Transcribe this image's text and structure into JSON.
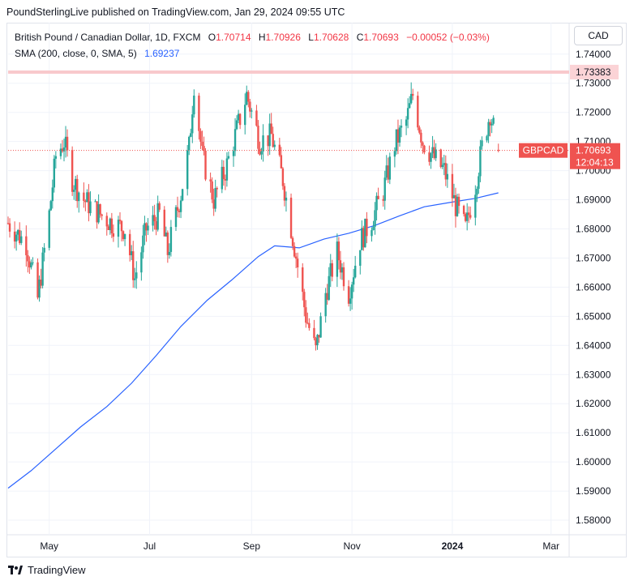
{
  "publisher_line": "PoundSterlingLive published on TradingView.com, Jan 29, 2024 09:55 UTC",
  "legend": {
    "instrument": "British Pound / Canadian Dollar, 1D, FXCM",
    "o_label": "O",
    "o_value": "1.70714",
    "h_label": "H",
    "h_value": "1.70926",
    "l_label": "L",
    "l_value": "1.70628",
    "c_label": "C",
    "c_value": "1.70693",
    "change": "−0.00052 (−0.03%)",
    "sma_label": "SMA (200, close, 0, SMA, 5)",
    "sma_value": "1.69237"
  },
  "currency_button": "CAD",
  "footer_brand": "TradingView",
  "colors": {
    "up": "#26a69a",
    "down": "#ef5350",
    "sma": "#2962ff",
    "hline": "#f8c9cc",
    "price_tag": "#ef5350",
    "grid": "#f0f3fa"
  },
  "chart_data": {
    "type": "candlestick",
    "symbol": "GBPCAD",
    "timeframe": "1D",
    "y_axis": {
      "min": 1.575,
      "max": 1.743,
      "ticks": [
        "1.74000",
        "1.73000",
        "1.72000",
        "1.71000",
        "1.70000",
        "1.69000",
        "1.68000",
        "1.67000",
        "1.66000",
        "1.65000",
        "1.64000",
        "1.63000",
        "1.62000",
        "1.61000",
        "1.60000",
        "1.59000",
        "1.58000"
      ]
    },
    "x_axis": {
      "ticks": [
        {
          "label": "May",
          "date": "2023-05-01",
          "bold": false
        },
        {
          "label": "Jul",
          "date": "2023-07-01",
          "bold": false
        },
        {
          "label": "Sep",
          "date": "2023-09-01",
          "bold": false
        },
        {
          "label": "Nov",
          "date": "2023-11-01",
          "bold": false
        },
        {
          "label": "2024",
          "date": "2024-01-01",
          "bold": true
        },
        {
          "label": "Mar",
          "date": "2024-03-01",
          "bold": false
        }
      ]
    },
    "horizontal_line": {
      "value": 1.73383,
      "label": "1.73383"
    },
    "last_price": {
      "value": 1.70693,
      "label": "1.70693",
      "symbol": "GBPCAD",
      "countdown": "12:04:13"
    },
    "sma": {
      "name": "SMA (200)",
      "points": [
        {
          "date": "2023-04-06",
          "value": 1.591
        },
        {
          "date": "2023-04-20",
          "value": 1.597
        },
        {
          "date": "2023-05-05",
          "value": 1.6045
        },
        {
          "date": "2023-05-20",
          "value": 1.612
        },
        {
          "date": "2023-06-05",
          "value": 1.619
        },
        {
          "date": "2023-06-20",
          "value": 1.627
        },
        {
          "date": "2023-07-05",
          "value": 1.6365
        },
        {
          "date": "2023-07-20",
          "value": 1.6465
        },
        {
          "date": "2023-08-05",
          "value": 1.6555
        },
        {
          "date": "2023-08-20",
          "value": 1.6625
        },
        {
          "date": "2023-09-05",
          "value": 1.6705
        },
        {
          "date": "2023-09-15",
          "value": 1.6742
        },
        {
          "date": "2023-09-30",
          "value": 1.6735
        },
        {
          "date": "2023-10-15",
          "value": 1.6765
        },
        {
          "date": "2023-10-30",
          "value": 1.6785
        },
        {
          "date": "2023-11-15",
          "value": 1.6812
        },
        {
          "date": "2023-11-30",
          "value": 1.6845
        },
        {
          "date": "2023-12-15",
          "value": 1.6876
        },
        {
          "date": "2024-01-01",
          "value": 1.6892
        },
        {
          "date": "2024-01-15",
          "value": 1.6905
        },
        {
          "date": "2024-01-29",
          "value": 1.69237
        }
      ]
    },
    "candles_key": [
      {
        "date": "2023-04-06",
        "close": 1.682
      },
      {
        "date": "2023-04-17",
        "close": 1.675
      },
      {
        "date": "2023-04-24",
        "close": 1.656
      },
      {
        "date": "2023-05-01",
        "close": 1.685
      },
      {
        "date": "2023-05-05",
        "close": 1.705
      },
      {
        "date": "2023-05-10",
        "close": 1.71
      },
      {
        "date": "2023-05-15",
        "close": 1.697
      },
      {
        "date": "2023-05-22",
        "close": 1.69
      },
      {
        "date": "2023-06-01",
        "close": 1.685
      },
      {
        "date": "2023-06-08",
        "close": 1.682
      },
      {
        "date": "2023-06-16",
        "close": 1.68
      },
      {
        "date": "2023-06-22",
        "close": 1.663
      },
      {
        "date": "2023-06-29",
        "close": 1.68
      },
      {
        "date": "2023-07-07",
        "close": 1.685
      },
      {
        "date": "2023-07-12",
        "close": 1.672
      },
      {
        "date": "2023-07-20",
        "close": 1.692
      },
      {
        "date": "2023-07-25",
        "close": 1.708
      },
      {
        "date": "2023-07-28",
        "close": 1.73
      },
      {
        "date": "2023-08-02",
        "close": 1.705
      },
      {
        "date": "2023-08-09",
        "close": 1.69
      },
      {
        "date": "2023-08-16",
        "close": 1.7
      },
      {
        "date": "2023-08-22",
        "close": 1.712
      },
      {
        "date": "2023-08-29",
        "close": 1.726
      },
      {
        "date": "2023-09-06",
        "close": 1.71
      },
      {
        "date": "2023-09-13",
        "close": 1.712
      },
      {
        "date": "2023-09-20",
        "close": 1.697
      },
      {
        "date": "2023-09-27",
        "close": 1.674
      },
      {
        "date": "2023-10-04",
        "close": 1.65
      },
      {
        "date": "2023-10-10",
        "close": 1.638
      },
      {
        "date": "2023-10-16",
        "close": 1.658
      },
      {
        "date": "2023-10-23",
        "close": 1.672
      },
      {
        "date": "2023-10-30",
        "close": 1.658
      },
      {
        "date": "2023-11-06",
        "close": 1.676
      },
      {
        "date": "2023-11-13",
        "close": 1.683
      },
      {
        "date": "2023-11-20",
        "close": 1.693
      },
      {
        "date": "2023-11-27",
        "close": 1.709
      },
      {
        "date": "2023-12-04",
        "close": 1.717
      },
      {
        "date": "2023-12-08",
        "close": 1.726
      },
      {
        "date": "2023-12-14",
        "close": 1.71
      },
      {
        "date": "2023-12-20",
        "close": 1.705
      },
      {
        "date": "2023-12-27",
        "close": 1.7
      },
      {
        "date": "2024-01-03",
        "close": 1.688
      },
      {
        "date": "2024-01-09",
        "close": 1.68
      },
      {
        "date": "2024-01-15",
        "close": 1.695
      },
      {
        "date": "2024-01-19",
        "close": 1.708
      },
      {
        "date": "2024-01-24",
        "close": 1.72
      },
      {
        "date": "2024-01-29",
        "close": 1.70693
      }
    ]
  }
}
